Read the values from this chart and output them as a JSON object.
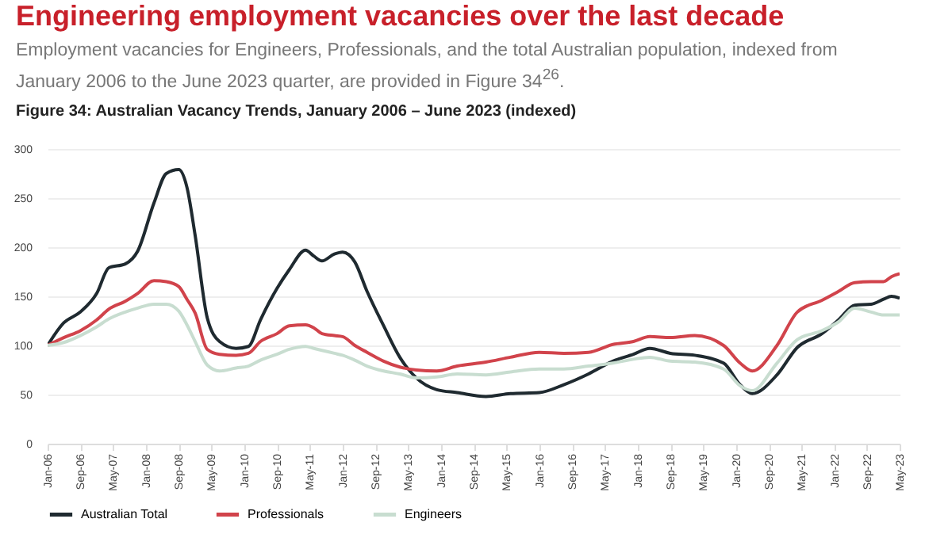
{
  "chart_data": {
    "type": "line",
    "title": "Engineering employment vacancies over the last decade",
    "subtitle": "Employment vacancies for Engineers, Professionals, and the total Australian population, indexed from January 2006 to the June 2023 quarter, are provided in Figure 34$^{26}$.",
    "annotations": [
      "Figure 34: Australian Vacancy Trends, January 2006 – June 2023 (indexed)"
    ],
    "x": [
      "2006-01",
      "2006-05",
      "2006-09",
      "2007-01",
      "2007-04",
      "2007-08",
      "2007-11",
      "2008-03",
      "2008-06",
      "2008-09",
      "2008-11",
      "2009-01",
      "2009-04",
      "2009-07",
      "2009-11",
      "2010-02",
      "2010-05",
      "2010-09",
      "2010-12",
      "2011-04",
      "2011-06",
      "2011-08",
      "2011-11",
      "2012-01",
      "2012-04",
      "2012-07",
      "2012-11",
      "2013-03",
      "2013-07",
      "2013-12",
      "2014-05",
      "2014-12",
      "2015-06",
      "2016-01",
      "2016-07",
      "2017-01",
      "2017-07",
      "2017-12",
      "2018-04",
      "2018-09",
      "2019-03",
      "2019-10",
      "2020-02",
      "2020-05",
      "2020-11",
      "2021-04",
      "2021-10",
      "2022-02",
      "2022-06",
      "2022-10",
      "2023-01",
      "2023-03",
      "2023-05"
    ],
    "series": [
      {
        "name": "Australian Total",
        "color": "#1f2a30",
        "values": [
          100,
          123,
          134,
          153,
          179,
          183,
          196,
          245,
          275,
          279,
          261,
          212,
          128,
          104,
          97,
          99,
          126,
          158,
          177,
          197,
          191,
          186,
          193,
          195,
          185,
          155,
          120,
          88,
          67,
          55,
          52,
          48,
          51,
          52,
          60,
          71,
          84,
          91,
          97,
          92,
          90,
          82,
          60,
          51,
          70,
          98,
          112,
          126,
          141,
          142,
          147,
          150,
          148
        ]
      },
      {
        "name": "Professionals",
        "color": "#d1434b",
        "values": [
          100,
          108,
          115,
          126,
          137,
          145,
          153,
          166,
          165,
          160,
          147,
          133,
          96,
          91,
          90,
          92,
          104,
          112,
          120,
          121,
          118,
          112,
          110,
          109,
          100,
          93,
          84,
          78,
          75,
          74,
          79,
          83,
          88,
          93,
          92,
          93,
          101,
          104,
          109,
          108,
          110,
          100,
          82,
          74,
          100,
          134,
          146,
          155,
          164,
          165,
          165,
          170,
          173
        ]
      },
      {
        "name": "Engineers",
        "color": "#c8ddd0",
        "values": [
          100,
          103,
          110,
          119,
          127,
          134,
          138,
          142,
          142,
          135,
          121,
          104,
          80,
          74,
          77,
          79,
          85,
          91,
          96,
          99,
          97,
          95,
          92,
          90,
          85,
          79,
          74,
          71,
          67,
          68,
          71,
          70,
          73,
          76,
          76,
          79,
          82,
          86,
          88,
          84,
          83,
          76,
          59,
          54,
          82,
          106,
          115,
          124,
          138,
          134,
          131,
          131,
          131
        ]
      }
    ],
    "xlim": [
      "2006-01",
      "2023-05"
    ],
    "xticks": [
      {
        "value": "2006-01",
        "label": "Jan-06"
      },
      {
        "value": "2006-09",
        "label": "Sep-06"
      },
      {
        "value": "2007-05",
        "label": "May-07"
      },
      {
        "value": "2008-01",
        "label": "Jan-08"
      },
      {
        "value": "2008-09",
        "label": "Sep-08"
      },
      {
        "value": "2009-05",
        "label": "May-09"
      },
      {
        "value": "2010-01",
        "label": "Jan-10"
      },
      {
        "value": "2010-09",
        "label": "Sep-10"
      },
      {
        "value": "2011-05",
        "label": "May-11"
      },
      {
        "value": "2012-01",
        "label": "Jan-12"
      },
      {
        "value": "2012-09",
        "label": "Sep-12"
      },
      {
        "value": "2013-05",
        "label": "May-13"
      },
      {
        "value": "2014-01",
        "label": "Jan-14"
      },
      {
        "value": "2014-09",
        "label": "Sep-14"
      },
      {
        "value": "2015-05",
        "label": "May-15"
      },
      {
        "value": "2016-01",
        "label": "Jan-16"
      },
      {
        "value": "2016-09",
        "label": "Sep-16"
      },
      {
        "value": "2017-05",
        "label": "May-17"
      },
      {
        "value": "2018-01",
        "label": "Jan-18"
      },
      {
        "value": "2018-09",
        "label": "Sep-18"
      },
      {
        "value": "2019-05",
        "label": "May-19"
      },
      {
        "value": "2020-01",
        "label": "Jan-20"
      },
      {
        "value": "2020-09",
        "label": "Sep-20"
      },
      {
        "value": "2021-05",
        "label": "May-21"
      },
      {
        "value": "2022-01",
        "label": "Jan-22"
      },
      {
        "value": "2022-09",
        "label": "Sep-22"
      },
      {
        "value": "2023-05",
        "label": "May-23"
      }
    ],
    "ylim": [
      0,
      300
    ],
    "yticks": [
      0,
      50,
      100,
      150,
      200,
      250,
      300
    ],
    "grid": "y",
    "legend": "bottom"
  }
}
